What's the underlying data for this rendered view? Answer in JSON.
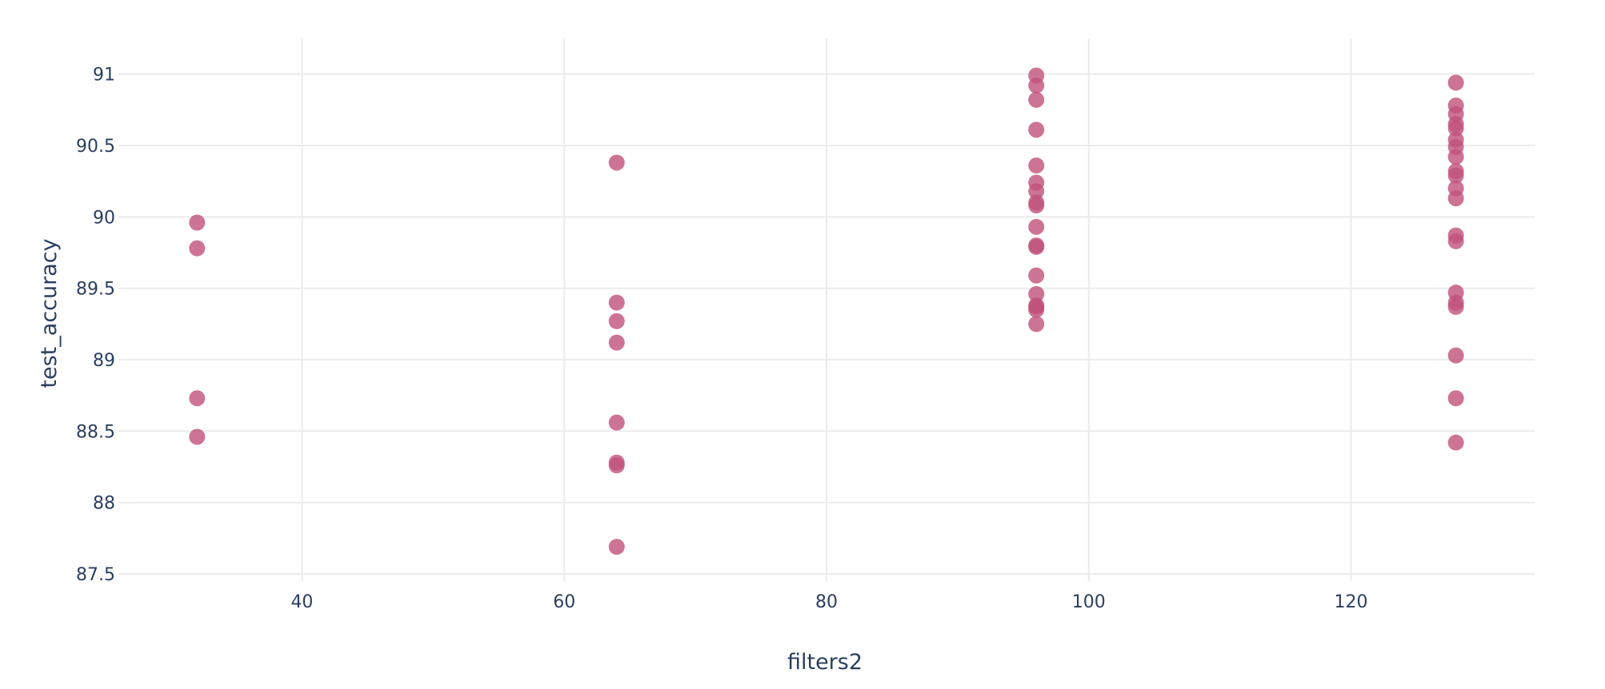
{
  "chart_data": {
    "type": "scatter",
    "title": "",
    "xlabel": "filters2",
    "ylabel": "test_accuracy",
    "xlim": [
      26,
      134
    ],
    "ylim": [
      87.45,
      91.25
    ],
    "xticks": [
      40,
      60,
      80,
      100,
      120
    ],
    "yticks": [
      87.5,
      88,
      88.5,
      89,
      89.5,
      90,
      90.5,
      91
    ],
    "xtick_labels": [
      "40",
      "60",
      "80",
      "100",
      "120"
    ],
    "ytick_labels": [
      "87.5",
      "88",
      "88.5",
      "89",
      "89.5",
      "90",
      "90.5",
      "91"
    ],
    "grid": true,
    "marker_color": "#c0517a",
    "series": [
      {
        "points": [
          {
            "x": 32,
            "y": 89.96
          },
          {
            "x": 32,
            "y": 89.78
          },
          {
            "x": 32,
            "y": 88.73
          },
          {
            "x": 32,
            "y": 88.46
          },
          {
            "x": 64,
            "y": 90.38
          },
          {
            "x": 64,
            "y": 89.4
          },
          {
            "x": 64,
            "y": 89.27
          },
          {
            "x": 64,
            "y": 89.12
          },
          {
            "x": 64,
            "y": 88.56
          },
          {
            "x": 64,
            "y": 88.28
          },
          {
            "x": 64,
            "y": 88.26
          },
          {
            "x": 64,
            "y": 87.69
          },
          {
            "x": 96,
            "y": 90.99
          },
          {
            "x": 96,
            "y": 90.92
          },
          {
            "x": 96,
            "y": 90.82
          },
          {
            "x": 96,
            "y": 90.61
          },
          {
            "x": 96,
            "y": 90.36
          },
          {
            "x": 96,
            "y": 90.24
          },
          {
            "x": 96,
            "y": 90.18
          },
          {
            "x": 96,
            "y": 90.1
          },
          {
            "x": 96,
            "y": 90.08
          },
          {
            "x": 96,
            "y": 89.93
          },
          {
            "x": 96,
            "y": 89.8
          },
          {
            "x": 96,
            "y": 89.79
          },
          {
            "x": 96,
            "y": 89.59
          },
          {
            "x": 96,
            "y": 89.46
          },
          {
            "x": 96,
            "y": 89.38
          },
          {
            "x": 96,
            "y": 89.37
          },
          {
            "x": 96,
            "y": 89.35
          },
          {
            "x": 96,
            "y": 89.25
          },
          {
            "x": 128,
            "y": 90.94
          },
          {
            "x": 128,
            "y": 90.78
          },
          {
            "x": 128,
            "y": 90.72
          },
          {
            "x": 128,
            "y": 90.65
          },
          {
            "x": 128,
            "y": 90.62
          },
          {
            "x": 128,
            "y": 90.54
          },
          {
            "x": 128,
            "y": 90.49
          },
          {
            "x": 128,
            "y": 90.42
          },
          {
            "x": 128,
            "y": 90.32
          },
          {
            "x": 128,
            "y": 90.29
          },
          {
            "x": 128,
            "y": 90.2
          },
          {
            "x": 128,
            "y": 90.13
          },
          {
            "x": 128,
            "y": 89.87
          },
          {
            "x": 128,
            "y": 89.83
          },
          {
            "x": 128,
            "y": 89.47
          },
          {
            "x": 128,
            "y": 89.4
          },
          {
            "x": 128,
            "y": 89.37
          },
          {
            "x": 128,
            "y": 89.03
          },
          {
            "x": 128,
            "y": 88.73
          },
          {
            "x": 128,
            "y": 88.42
          }
        ]
      }
    ]
  }
}
